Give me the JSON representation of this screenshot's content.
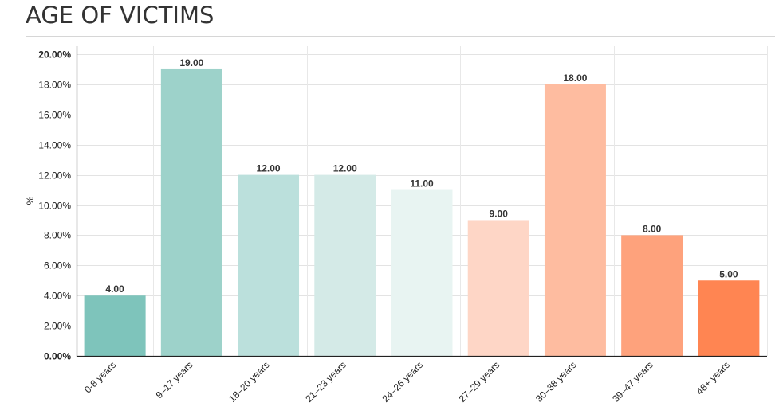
{
  "chart_data": {
    "type": "bar",
    "title": "AGE OF VICTIMS",
    "xlabel": "",
    "ylabel": "%",
    "ylim": [
      0,
      20
    ],
    "grid": true,
    "categories": [
      "0-8 years",
      "9–17 years",
      "18–20 years",
      "21–23 years",
      "24–26 years",
      "27–29 years",
      "30–38 years",
      "39–47 years",
      "48+ years"
    ],
    "values": [
      4.0,
      19.0,
      12.0,
      12.0,
      11.0,
      9.0,
      18.0,
      8.0,
      5.0
    ],
    "data_labels": [
      "4.00",
      "19.00",
      "12.00",
      "12.00",
      "11.00",
      "9.00",
      "18.00",
      "8.00",
      "5.00"
    ],
    "y_ticks": [
      0,
      2,
      4,
      6,
      8,
      10,
      12,
      14,
      16,
      18,
      20
    ],
    "y_tick_labels": [
      "0.00%",
      "2.00%",
      "4.00%",
      "6.00%",
      "8.00%",
      "10.00%",
      "12.00%",
      "14.00%",
      "16.00%",
      "18.00%",
      "20.00%"
    ],
    "bar_colors": [
      "#7ec4bb",
      "#9dd2ca",
      "#bbe0dc",
      "#d4eae7",
      "#e8f4f2",
      "#fed6c6",
      "#febca0",
      "#fea27c",
      "#ff8552"
    ]
  }
}
